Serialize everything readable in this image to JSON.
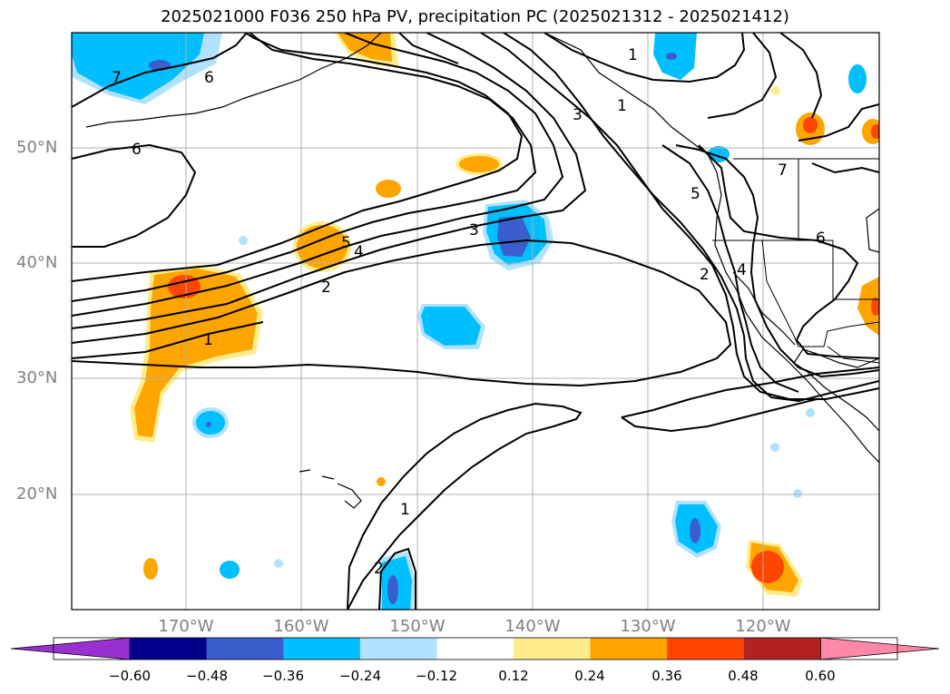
{
  "title": "2025021000 F036 250 hPa PV, precipitation PC (2025021312 - 2025021412)",
  "latitude_labels": [
    "50°N",
    "40°N",
    "30°N",
    "20°N"
  ],
  "longitude_labels": [
    "170°W",
    "160°W",
    "150°W",
    "140°W",
    "130°W",
    "120°W"
  ],
  "contour_labels": [
    "7",
    "6",
    "6",
    "5",
    "4",
    "3",
    "2",
    "1",
    "1",
    "3",
    "1",
    "7",
    "5",
    "4",
    "2",
    "6",
    "2",
    "1"
  ],
  "colorbar": {
    "tick_labels": [
      "−0.60",
      "−0.48",
      "−0.36",
      "−0.24",
      "−0.12",
      "0.12",
      "0.24",
      "0.36",
      "0.48",
      "0.60"
    ],
    "colors": [
      "#9b30d0",
      "#00008b",
      "#3a5fcd",
      "#00bfff",
      "#b0e2ff",
      "#ffffff",
      "#ffec8b",
      "#ffa500",
      "#ff4500",
      "#b22222",
      "#ff88a8"
    ]
  }
}
